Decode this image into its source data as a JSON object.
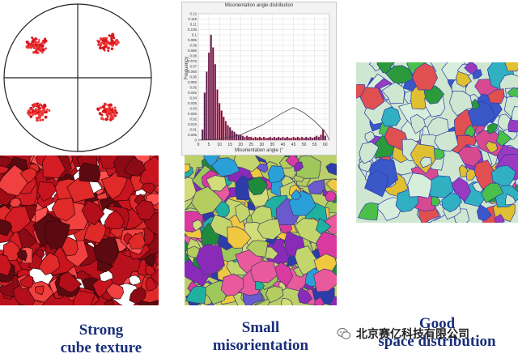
{
  "histogram": {
    "title": "Misorientation angle distribution",
    "xlabel": "Misorientation angle (°",
    "ylabel": "Frequency",
    "colors": {
      "bar": "#4a1a4a",
      "bar_edge": "#d04060",
      "curve": "#444444",
      "grid": "#dddddd",
      "frame": "#b8b8b8"
    }
  },
  "captions": {
    "strong_line1": "Strong",
    "strong_line2": "cube texture",
    "small_line1": "Small",
    "small_line2": "misorientation",
    "good_line1": "Good",
    "good_line2": "space distribution"
  },
  "watermark": {
    "text": "北京赛亿科技有限公司",
    "icon": "wechat-icon"
  },
  "chart_data": {
    "type": "bar",
    "title": "Misorientation angle distribution",
    "xlabel": "Misorientation angle (°",
    "ylabel": "Frequency",
    "xlim": [
      0,
      62
    ],
    "ylim": [
      0,
      0.12
    ],
    "x_ticks": [
      0,
      5,
      10,
      15,
      20,
      25,
      30,
      35,
      40,
      45,
      50,
      55,
      60
    ],
    "y_ticks": [
      0,
      0.005,
      0.01,
      0.015,
      0.02,
      0.025,
      0.03,
      0.035,
      0.04,
      0.045,
      0.05,
      0.055,
      0.06,
      0.065,
      0.07,
      0.075,
      0.08,
      0.085,
      0.09,
      0.095,
      0.1,
      0.105,
      0.11,
      0.115,
      0.12
    ],
    "series": [
      {
        "type": "bar",
        "x": [
          2,
          3,
          4,
          5,
          6,
          7,
          8,
          9,
          10,
          11,
          12,
          13,
          14,
          15,
          16,
          17,
          18,
          19,
          20,
          21,
          22,
          23,
          24,
          25,
          26,
          27,
          28,
          29,
          30,
          31,
          32,
          33,
          34,
          35,
          36,
          37,
          38,
          39,
          40,
          41,
          42,
          43,
          44,
          45,
          46,
          47,
          48,
          49,
          50,
          51,
          52,
          53,
          54,
          55,
          56,
          57,
          58,
          59,
          60
        ],
        "values": [
          0.01,
          0.045,
          0.065,
          0.083,
          0.1,
          0.088,
          0.072,
          0.048,
          0.035,
          0.028,
          0.022,
          0.018,
          0.014,
          0.012,
          0.009,
          0.008,
          0.006,
          0.005,
          0.005,
          0.004,
          0.003,
          0.004,
          0.003,
          0.003,
          0.002,
          0.003,
          0.002,
          0.003,
          0.002,
          0.003,
          0.002,
          0.002,
          0.003,
          0.002,
          0.003,
          0.002,
          0.003,
          0.002,
          0.003,
          0.002,
          0.003,
          0.002,
          0.002,
          0.003,
          0.002,
          0.003,
          0.002,
          0.003,
          0.002,
          0.003,
          0.002,
          0.003,
          0.002,
          0.003,
          0.004,
          0.003,
          0.005,
          0.01,
          0.004
        ]
      },
      {
        "type": "line",
        "x": [
          0,
          10,
          20,
          30,
          40,
          45,
          50,
          55,
          60,
          62
        ],
        "values": [
          0,
          0.001,
          0.005,
          0.014,
          0.026,
          0.031,
          0.026,
          0.018,
          0.008,
          0
        ]
      }
    ]
  }
}
